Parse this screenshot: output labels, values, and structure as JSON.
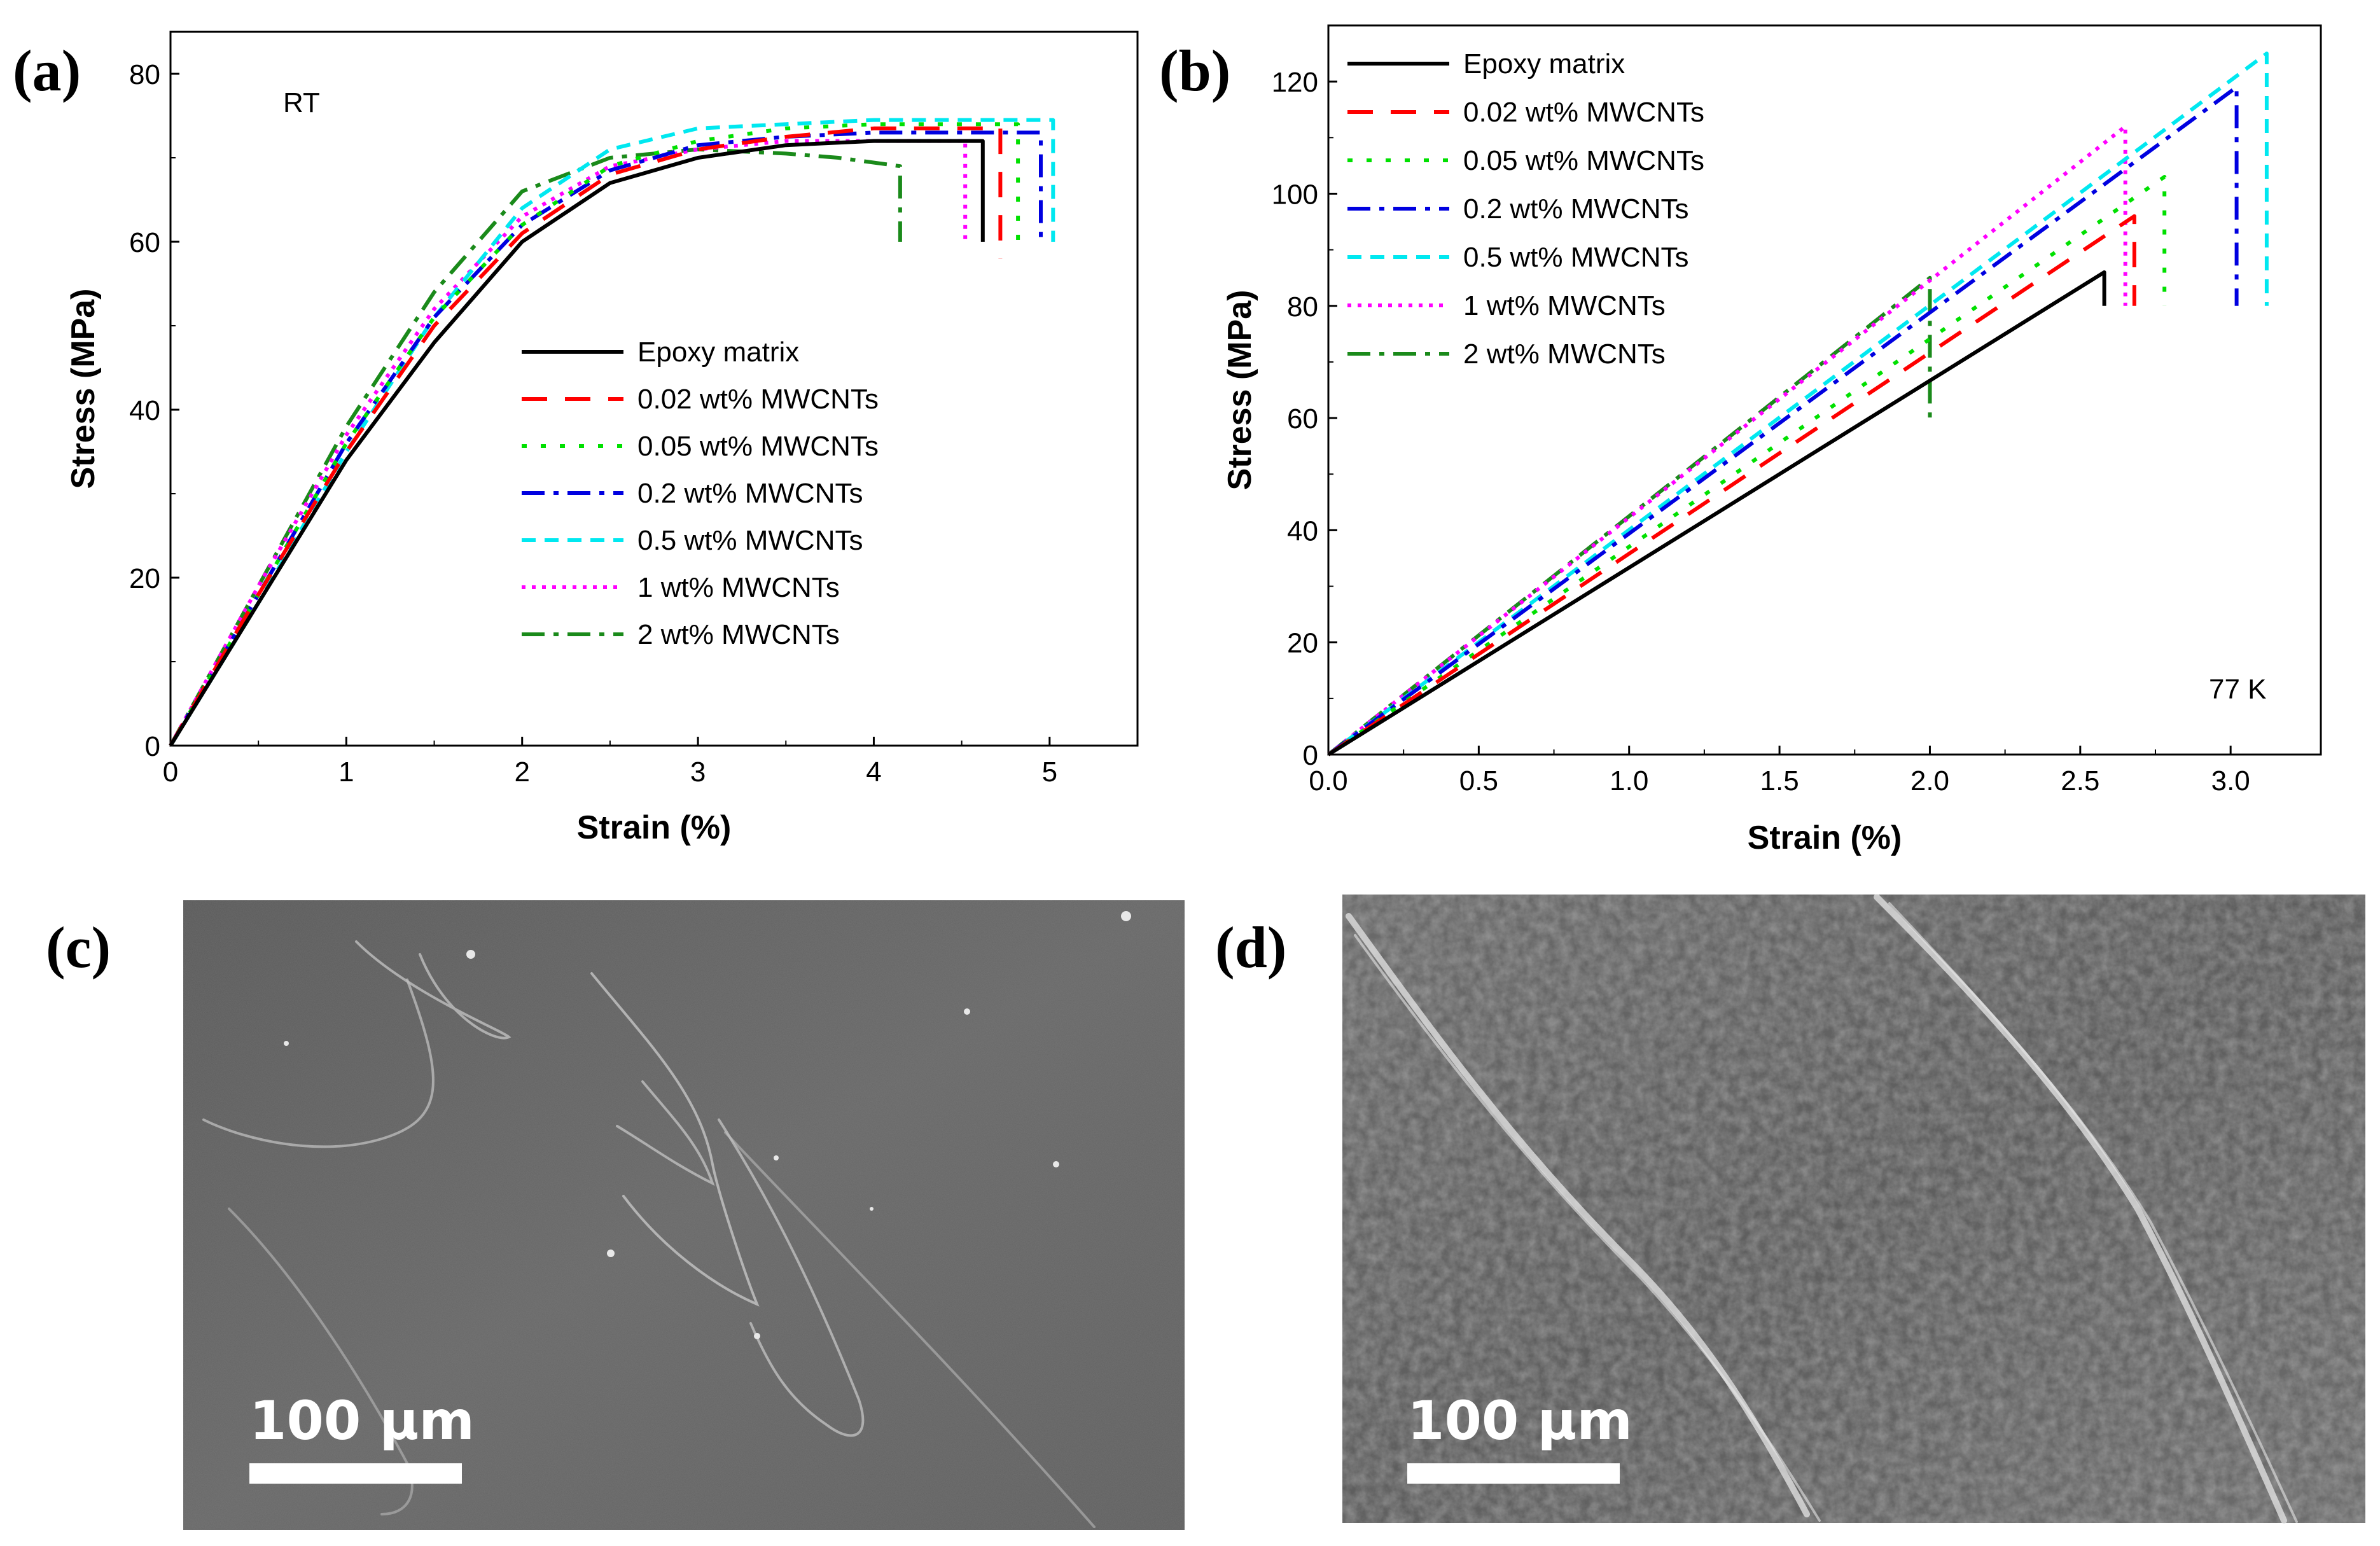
{
  "panel_labels": {
    "a": "(a)",
    "b": "(b)",
    "c": "(c)",
    "d": "(d)"
  },
  "series_style": [
    {
      "color": "#000000",
      "dash": ""
    },
    {
      "color": "#ff0000",
      "dash": "40,28"
    },
    {
      "color": "#00e000",
      "dash": "8,22"
    },
    {
      "color": "#0000e0",
      "dash": "36,14,8,14"
    },
    {
      "color": "#00e8f0",
      "dash": "22,14"
    },
    {
      "color": "#ff00ff",
      "dash": "6,10"
    },
    {
      "color": "#1a8a1a",
      "dash": "36,14,8,14"
    }
  ],
  "chart_data": [
    {
      "type": "line",
      "title": "",
      "annotation": "RT",
      "xlabel": "Strain (%)",
      "ylabel": "Stress (MPa)",
      "xlim": [
        0,
        5.5
      ],
      "ylim": [
        0,
        85
      ],
      "xticks": [
        0,
        1,
        2,
        3,
        4,
        5
      ],
      "xtick_labels": [
        "0",
        "1",
        "2",
        "3",
        "4",
        "5"
      ],
      "yticks": [
        0,
        20,
        40,
        60,
        80
      ],
      "ytick_labels": [
        "0",
        "20",
        "40",
        "60",
        "80"
      ],
      "legend_position": "center-right",
      "series": [
        {
          "name": "Epoxy matrix",
          "x": [
            0,
            0.5,
            1,
            1.5,
            2,
            2.5,
            3,
            3.5,
            4,
            4.62,
            4.62
          ],
          "y": [
            0,
            17,
            34,
            48,
            60,
            67,
            70,
            71.5,
            72,
            72,
            60
          ]
        },
        {
          "name": "0.02 wt% MWCNTs",
          "x": [
            0,
            0.5,
            1,
            1.5,
            2,
            2.5,
            3,
            3.5,
            4,
            4.72,
            4.72
          ],
          "y": [
            0,
            18,
            35,
            50,
            61,
            68,
            71,
            72.5,
            73.5,
            73.5,
            58
          ]
        },
        {
          "name": "0.05 wt% MWCNTs",
          "x": [
            0,
            0.5,
            1,
            1.5,
            2,
            2.5,
            3,
            3.5,
            4,
            4.82,
            4.82
          ],
          "y": [
            0,
            18,
            36,
            51,
            62,
            69,
            72,
            73.5,
            74,
            74,
            60
          ]
        },
        {
          "name": "0.2 wt% MWCNTs",
          "x": [
            0,
            0.5,
            1,
            1.5,
            2,
            2.5,
            3,
            3.5,
            4,
            4.95,
            4.95
          ],
          "y": [
            0,
            18,
            36,
            51,
            62,
            68.5,
            71.5,
            72.5,
            73,
            73,
            60
          ]
        },
        {
          "name": "0.5 wt% MWCNTs",
          "x": [
            0,
            0.5,
            1,
            1.5,
            2,
            2.5,
            3,
            3.5,
            4,
            5.02,
            5.02
          ],
          "y": [
            0,
            17,
            35,
            51,
            64,
            71,
            73.5,
            74,
            74.5,
            74.5,
            60
          ]
        },
        {
          "name": "1 wt% MWCNTs",
          "x": [
            0,
            0.5,
            1,
            1.5,
            2,
            2.5,
            3,
            3.5,
            4,
            4.52,
            4.52
          ],
          "y": [
            0,
            19,
            37,
            52,
            63,
            69,
            71,
            72,
            72,
            72,
            60
          ]
        },
        {
          "name": "2 wt% MWCNTs",
          "x": [
            0,
            0.5,
            1,
            1.5,
            2,
            2.5,
            3,
            3.5,
            3.8,
            4.15,
            4.15
          ],
          "y": [
            0,
            19,
            38,
            54,
            66,
            70,
            71,
            70.5,
            70,
            69,
            60
          ]
        }
      ]
    },
    {
      "type": "line",
      "title": "",
      "annotation": "77 K",
      "xlabel": "Strain (%)",
      "ylabel": "Stress (MPa)",
      "xlim": [
        0,
        3.3
      ],
      "ylim": [
        0,
        130
      ],
      "xticks": [
        0,
        0.5,
        1,
        1.5,
        2,
        2.5,
        3
      ],
      "xtick_labels": [
        "0.0",
        "0.5",
        "1.0",
        "1.5",
        "2.0",
        "2.5",
        "3.0"
      ],
      "yticks": [
        0,
        20,
        40,
        60,
        80,
        100,
        120
      ],
      "ytick_labels": [
        "0",
        "20",
        "40",
        "60",
        "80",
        "100",
        "120"
      ],
      "legend_position": "top-left",
      "series": [
        {
          "name": "Epoxy matrix",
          "x": [
            0,
            2.58,
            2.58
          ],
          "y": [
            0,
            86,
            80
          ]
        },
        {
          "name": "0.02 wt% MWCNTs",
          "x": [
            0,
            2.68,
            2.68
          ],
          "y": [
            0,
            96,
            80
          ]
        },
        {
          "name": "0.05 wt% MWCNTs",
          "x": [
            0,
            2.78,
            2.78
          ],
          "y": [
            0,
            103,
            80
          ]
        },
        {
          "name": "0.2 wt% MWCNTs",
          "x": [
            0,
            3.02,
            3.02
          ],
          "y": [
            0,
            119,
            80
          ]
        },
        {
          "name": "0.5 wt% MWCNTs",
          "x": [
            0,
            3.12,
            3.12
          ],
          "y": [
            0,
            125,
            80
          ]
        },
        {
          "name": "1 wt% MWCNTs",
          "x": [
            0,
            2.65,
            2.65
          ],
          "y": [
            0,
            112,
            80
          ]
        },
        {
          "name": "2 wt% MWCNTs",
          "x": [
            0,
            2.0,
            2.0
          ],
          "y": [
            0,
            85,
            60
          ]
        }
      ]
    }
  ],
  "micrographs": {
    "c": {
      "scale_text": "100 μm"
    },
    "d": {
      "scale_text": "100 μm"
    }
  }
}
